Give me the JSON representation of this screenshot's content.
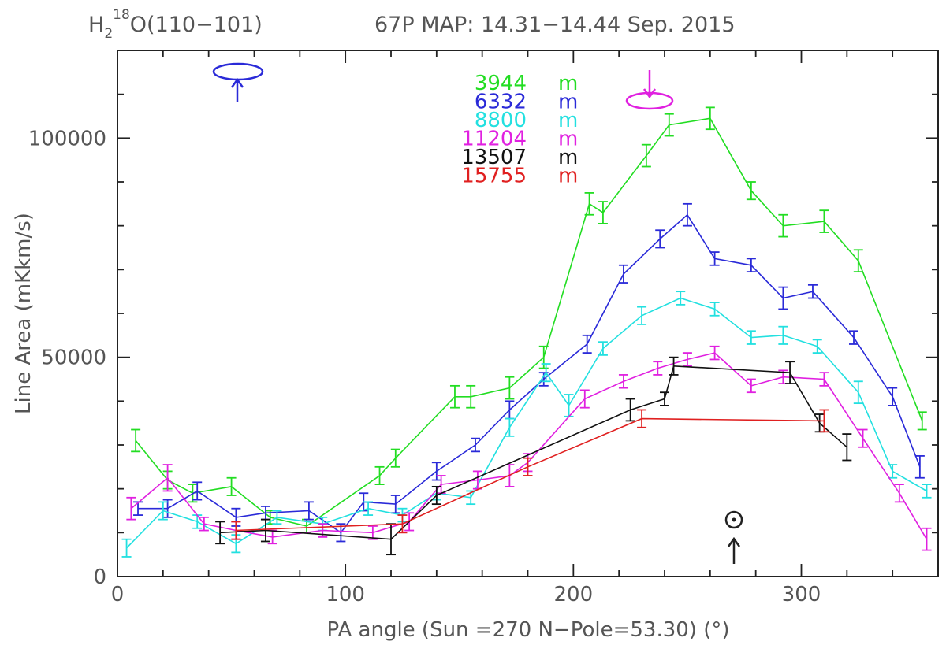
{
  "header": {
    "species_base": "H",
    "species_sub": "2",
    "species_sup": "18",
    "species_rest": "O(110−101)",
    "map_title": "67P MAP: 14.31−14.44 Sep. 2015"
  },
  "annotations": {
    "north_pole_pa": 53.3,
    "sun_pa": 270
  },
  "chart_data": {
    "type": "line",
    "title": "67P MAP: 14.31−14.44 Sep. 2015",
    "xlabel": "PA angle (Sun =270 N−Pole=53.30) (°)",
    "ylabel": "Line Area (mKkm/s)",
    "xlim": [
      0,
      360
    ],
    "ylim": [
      0,
      120000
    ],
    "xticks": [
      0,
      100,
      200,
      300
    ],
    "yticks": [
      0,
      50000,
      100000
    ],
    "xtick_labels": [
      "0",
      "100",
      "200",
      "300"
    ],
    "ytick_labels": [
      "0",
      "50000",
      "100000"
    ],
    "legend_position": "top-center",
    "series": [
      {
        "name": "3944",
        "unit": "m",
        "color": "#22dd22",
        "x": [
          8,
          22,
          33,
          50,
          67,
          83,
          115,
          122,
          148,
          155,
          172,
          187,
          207,
          213,
          232,
          242,
          260,
          278,
          292,
          310,
          325,
          353
        ],
        "y": [
          31000,
          22000,
          19000,
          20500,
          13500,
          11500,
          23000,
          27000,
          41000,
          41000,
          43000,
          50000,
          85000,
          83000,
          96000,
          103000,
          104500,
          88000,
          80000,
          81000,
          72000,
          35500
        ],
        "err": [
          2500,
          2000,
          2000,
          2000,
          1500,
          1500,
          2000,
          2000,
          2500,
          2500,
          2500,
          2500,
          2500,
          2500,
          2500,
          2500,
          2500,
          2000,
          2500,
          2500,
          2500,
          2000
        ]
      },
      {
        "name": "6332",
        "unit": "m",
        "color": "#2a2ad8",
        "x": [
          9,
          22,
          35,
          52,
          65,
          84,
          98,
          108,
          122,
          140,
          157,
          172,
          187,
          206,
          222,
          238,
          250,
          262,
          278,
          292,
          305,
          323,
          340,
          352
        ],
        "y": [
          15500,
          15500,
          19500,
          13500,
          14500,
          15000,
          10000,
          17000,
          16500,
          24000,
          30000,
          38000,
          45000,
          53000,
          69000,
          77000,
          82500,
          72500,
          71000,
          63500,
          65000,
          54500,
          41000,
          25000
        ],
        "err": [
          1500,
          2000,
          2000,
          2000,
          1500,
          2000,
          2000,
          2000,
          2000,
          2000,
          1500,
          2000,
          1500,
          2000,
          2000,
          2000,
          2500,
          1500,
          1500,
          2500,
          1500,
          1500,
          2000,
          2500
        ]
      },
      {
        "name": "8800",
        "unit": "m",
        "color": "#22e0e0",
        "x": [
          4,
          20,
          35,
          52,
          70,
          90,
          110,
          125,
          140,
          155,
          172,
          188,
          198,
          213,
          230,
          247,
          262,
          278,
          292,
          307,
          325,
          340,
          355
        ],
        "y": [
          6500,
          15000,
          12500,
          7500,
          13500,
          12000,
          15500,
          14000,
          19000,
          18000,
          34000,
          46500,
          39000,
          52000,
          59500,
          63500,
          61000,
          54500,
          55000,
          52500,
          42000,
          24000,
          19500
        ],
        "err": [
          2000,
          2000,
          1500,
          2000,
          1500,
          1500,
          1500,
          1500,
          1500,
          1500,
          2000,
          2000,
          2500,
          1500,
          2000,
          1500,
          1500,
          1500,
          2000,
          1500,
          2500,
          1500,
          1500
        ]
      },
      {
        "name": "11204",
        "unit": "m",
        "color": "#e020e0",
        "x": [
          6,
          22,
          38,
          52,
          68,
          90,
          112,
          128,
          142,
          158,
          172,
          180,
          205,
          222,
          237,
          250,
          262,
          278,
          292,
          310,
          327,
          343,
          355
        ],
        "y": [
          15500,
          22500,
          12000,
          10500,
          9000,
          10500,
          10000,
          12500,
          21000,
          22000,
          23000,
          26000,
          40500,
          44500,
          47500,
          49500,
          51000,
          43500,
          45500,
          45000,
          31500,
          19000,
          8500
        ],
        "err": [
          2500,
          3000,
          1500,
          2000,
          1500,
          1500,
          1500,
          2000,
          2000,
          2000,
          2500,
          2000,
          2000,
          1500,
          1500,
          1500,
          1500,
          1500,
          1500,
          1500,
          2000,
          2000,
          2500
        ]
      },
      {
        "name": "13507",
        "unit": "m",
        "color": "#111111",
        "x": [
          45,
          65,
          120,
          140,
          225,
          240,
          244,
          295,
          308,
          320
        ],
        "y": [
          10000,
          10500,
          8500,
          18500,
          38000,
          40500,
          48000,
          46500,
          35000,
          29500
        ],
        "err": [
          2500,
          2500,
          3500,
          2000,
          2500,
          1500,
          2000,
          2500,
          2000,
          3000
        ]
      },
      {
        "name": "15755",
        "unit": "m",
        "color": "#e02020",
        "x": [
          52,
          125,
          180,
          230,
          310
        ],
        "y": [
          10500,
          12000,
          25000,
          36000,
          35500
        ],
        "err": [
          2000,
          2000,
          2000,
          2000,
          2500
        ]
      }
    ]
  }
}
